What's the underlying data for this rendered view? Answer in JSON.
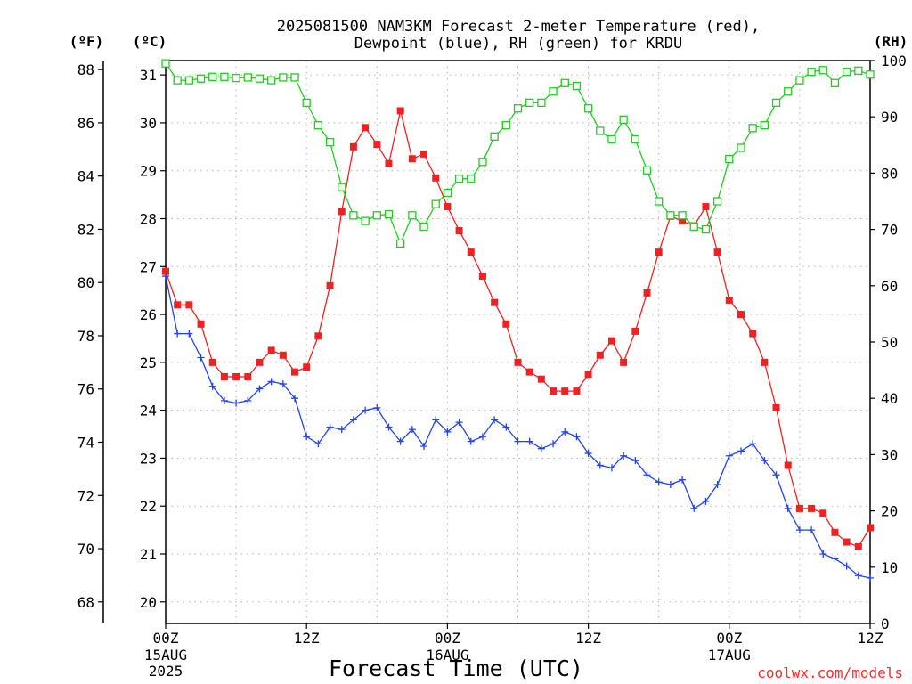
{
  "chart_data": {
    "type": "line",
    "title": [
      "2025081500 NAM3KM Forecast 2-meter Temperature (red),",
      "Dewpoint (blue), RH (green) for KRDU"
    ],
    "xlabel": "Forecast Time (UTC)",
    "units": {
      "left_f": "(ºF)",
      "left_c": "(ºC)",
      "right": "(RH)"
    },
    "x_ticks": [
      {
        "h": 0,
        "label": "00Z",
        "sub": [
          "15AUG",
          "2025"
        ]
      },
      {
        "h": 12,
        "label": "12Z",
        "sub": []
      },
      {
        "h": 24,
        "label": "00Z",
        "sub": [
          "16AUG"
        ]
      },
      {
        "h": 36,
        "label": "12Z",
        "sub": []
      },
      {
        "h": 48,
        "label": "00Z",
        "sub": [
          "17AUG"
        ]
      },
      {
        "h": 60,
        "label": "12Z",
        "sub": []
      }
    ],
    "xlim": [
      0,
      60
    ],
    "ylim_c": [
      19.55,
      31.3
    ],
    "ylim_rh": [
      0,
      100
    ],
    "f_ticks": [
      68,
      70,
      72,
      74,
      76,
      78,
      80,
      82,
      84,
      86,
      88
    ],
    "c_ticks": [
      20,
      21,
      22,
      23,
      24,
      25,
      26,
      27,
      28,
      29,
      30,
      31
    ],
    "rh_ticks": [
      0,
      10,
      20,
      30,
      40,
      50,
      60,
      70,
      80,
      90,
      100
    ],
    "grid": true,
    "colors": {
      "temperature": "#ee2222",
      "dewpoint": "#2244ee",
      "rh": "#22cc22",
      "credit": "#ff2a2a"
    },
    "series": [
      {
        "name": "Temperature",
        "unit": "C",
        "marker": "filled-square",
        "color": "#ee2222",
        "x": [
          0,
          1,
          2,
          3,
          4,
          5,
          6,
          7,
          8,
          9,
          10,
          11,
          12,
          13,
          14,
          15,
          16,
          17,
          18,
          19,
          20,
          21,
          22,
          23,
          24,
          25,
          26,
          27,
          28,
          29,
          30,
          31,
          32,
          33,
          34,
          35,
          36,
          37,
          38,
          39,
          40,
          41,
          42,
          43,
          44,
          45,
          46,
          47,
          48,
          49,
          50,
          51,
          52,
          53,
          54,
          55,
          56,
          57,
          58,
          59,
          60
        ],
        "values": [
          26.9,
          26.2,
          26.2,
          25.8,
          25.0,
          24.7,
          24.7,
          24.7,
          25.0,
          25.25,
          25.15,
          24.8,
          24.9,
          25.55,
          26.6,
          28.15,
          29.5,
          29.9,
          29.55,
          29.15,
          30.25,
          29.25,
          29.35,
          28.85,
          28.25,
          27.75,
          27.3,
          26.8,
          26.25,
          25.8,
          25.0,
          24.8,
          24.65,
          24.4,
          24.4,
          24.4,
          24.75,
          25.15,
          25.45,
          25.0,
          25.65,
          26.45,
          27.3,
          28.05,
          27.95,
          27.85,
          28.25,
          27.3,
          26.3,
          26.0,
          25.6,
          25.0,
          24.05,
          22.85,
          21.95,
          21.95,
          21.85,
          21.45,
          21.25,
          21.15,
          21.55
        ]
      },
      {
        "name": "Dewpoint",
        "unit": "C",
        "marker": "plus",
        "color": "#2244ee",
        "x": [
          0,
          1,
          2,
          3,
          4,
          5,
          6,
          7,
          8,
          9,
          10,
          11,
          12,
          13,
          14,
          15,
          16,
          17,
          18,
          19,
          20,
          21,
          22,
          23,
          24,
          25,
          26,
          27,
          28,
          29,
          30,
          31,
          32,
          33,
          34,
          35,
          36,
          37,
          38,
          39,
          40,
          41,
          42,
          43,
          44,
          45,
          46,
          47,
          48,
          49,
          50,
          51,
          52,
          53,
          54,
          55,
          56,
          57,
          58,
          59,
          60
        ],
        "values": [
          26.8,
          25.6,
          25.6,
          25.1,
          24.5,
          24.2,
          24.15,
          24.2,
          24.45,
          24.6,
          24.55,
          24.25,
          23.45,
          23.3,
          23.65,
          23.6,
          23.8,
          24.0,
          24.05,
          23.65,
          23.35,
          23.6,
          23.25,
          23.8,
          23.55,
          23.75,
          23.35,
          23.45,
          23.8,
          23.65,
          23.35,
          23.35,
          23.2,
          23.3,
          23.55,
          23.45,
          23.1,
          22.85,
          22.8,
          23.05,
          22.95,
          22.65,
          22.5,
          22.45,
          22.55,
          21.95,
          22.1,
          22.45,
          23.05,
          23.15,
          23.3,
          22.95,
          22.65,
          21.95,
          21.5,
          21.5,
          21.0,
          20.9,
          20.75,
          20.55,
          20.5
        ]
      },
      {
        "name": "RH",
        "unit": "%",
        "marker": "open-square",
        "color": "#22cc22",
        "x": [
          0,
          1,
          2,
          3,
          4,
          5,
          6,
          7,
          8,
          9,
          10,
          11,
          12,
          13,
          14,
          15,
          16,
          17,
          18,
          19,
          20,
          21,
          22,
          23,
          24,
          25,
          26,
          27,
          28,
          29,
          30,
          31,
          32,
          33,
          34,
          35,
          36,
          37,
          38,
          39,
          40,
          41,
          42,
          43,
          44,
          45,
          46,
          47,
          48,
          49,
          50,
          51,
          52,
          53,
          54,
          55,
          56,
          57,
          58,
          59,
          60
        ],
        "values": [
          99.5,
          96.5,
          96.5,
          96.8,
          97.1,
          97.1,
          96.9,
          97.0,
          96.8,
          96.5,
          97.0,
          97.0,
          92.5,
          88.5,
          85.5,
          77.5,
          72.5,
          71.5,
          72.5,
          72.7,
          67.5,
          72.5,
          70.5,
          74.5,
          76.5,
          79.0,
          79.0,
          82.0,
          86.5,
          88.5,
          91.5,
          92.5,
          92.5,
          94.5,
          96.0,
          95.5,
          91.5,
          87.5,
          86.0,
          89.5,
          86.0,
          80.5,
          75.0,
          72.5,
          72.5,
          70.5,
          70.0,
          75.0,
          82.5,
          84.5,
          88.0,
          88.5,
          92.5,
          94.5,
          96.5,
          98.0,
          98.3,
          96.0,
          98.0,
          98.2,
          97.5
        ]
      }
    ]
  },
  "credit": "coolwx.com/models"
}
